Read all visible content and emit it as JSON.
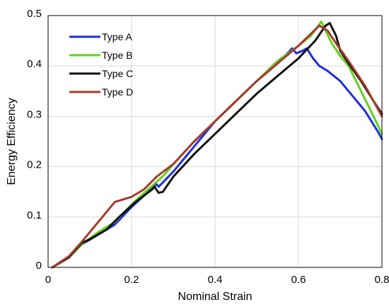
{
  "chart_data": {
    "type": "line",
    "xlabel": "Nominal Strain",
    "ylabel": "Energy Efficiency",
    "xlim": [
      0,
      0.8
    ],
    "ylim": [
      0,
      0.5
    ],
    "x_ticks": [
      "0",
      "0.2",
      "0.4",
      "0.6",
      "0.8"
    ],
    "y_ticks": [
      "0",
      "0.1",
      "0.2",
      "0.3",
      "0.4",
      "0.5"
    ],
    "x_tick_values": [
      0,
      0.2,
      0.4,
      0.6,
      0.8
    ],
    "y_tick_values": [
      0,
      0.1,
      0.2,
      0.3,
      0.4,
      0.5
    ],
    "grid": true,
    "legend_position": "top-left",
    "series": [
      {
        "name": "Type A",
        "color": "#1f2fd6",
        "points": [
          [
            0.01,
            0.0
          ],
          [
            0.05,
            0.02
          ],
          [
            0.08,
            0.045
          ],
          [
            0.1,
            0.055
          ],
          [
            0.13,
            0.07
          ],
          [
            0.16,
            0.085
          ],
          [
            0.2,
            0.12
          ],
          [
            0.24,
            0.15
          ],
          [
            0.26,
            0.165
          ],
          [
            0.265,
            0.16
          ],
          [
            0.3,
            0.19
          ],
          [
            0.35,
            0.24
          ],
          [
            0.4,
            0.29
          ],
          [
            0.45,
            0.33
          ],
          [
            0.5,
            0.37
          ],
          [
            0.55,
            0.405
          ],
          [
            0.585,
            0.435
          ],
          [
            0.595,
            0.425
          ],
          [
            0.61,
            0.43
          ],
          [
            0.62,
            0.435
          ],
          [
            0.635,
            0.415
          ],
          [
            0.65,
            0.4
          ],
          [
            0.67,
            0.39
          ],
          [
            0.7,
            0.37
          ],
          [
            0.73,
            0.34
          ],
          [
            0.76,
            0.31
          ],
          [
            0.79,
            0.27
          ],
          [
            0.8,
            0.255
          ]
        ]
      },
      {
        "name": "Type B",
        "color": "#5fd31e",
        "points": [
          [
            0.01,
            0.0
          ],
          [
            0.05,
            0.02
          ],
          [
            0.08,
            0.045
          ],
          [
            0.12,
            0.07
          ],
          [
            0.16,
            0.09
          ],
          [
            0.2,
            0.125
          ],
          [
            0.24,
            0.155
          ],
          [
            0.26,
            0.17
          ],
          [
            0.28,
            0.185
          ],
          [
            0.3,
            0.205
          ],
          [
            0.35,
            0.25
          ],
          [
            0.4,
            0.29
          ],
          [
            0.45,
            0.33
          ],
          [
            0.5,
            0.37
          ],
          [
            0.55,
            0.41
          ],
          [
            0.6,
            0.44
          ],
          [
            0.63,
            0.46
          ],
          [
            0.655,
            0.488
          ],
          [
            0.665,
            0.47
          ],
          [
            0.68,
            0.445
          ],
          [
            0.7,
            0.42
          ],
          [
            0.72,
            0.4
          ],
          [
            0.75,
            0.35
          ],
          [
            0.78,
            0.3
          ],
          [
            0.8,
            0.265
          ]
        ]
      },
      {
        "name": "Type C",
        "color": "#111111",
        "points": [
          [
            0.01,
            0.0
          ],
          [
            0.05,
            0.02
          ],
          [
            0.08,
            0.048
          ],
          [
            0.1,
            0.056
          ],
          [
            0.14,
            0.075
          ],
          [
            0.17,
            0.1
          ],
          [
            0.21,
            0.13
          ],
          [
            0.25,
            0.155
          ],
          [
            0.255,
            0.16
          ],
          [
            0.265,
            0.148
          ],
          [
            0.275,
            0.15
          ],
          [
            0.3,
            0.18
          ],
          [
            0.35,
            0.225
          ],
          [
            0.4,
            0.265
          ],
          [
            0.45,
            0.305
          ],
          [
            0.5,
            0.345
          ],
          [
            0.55,
            0.38
          ],
          [
            0.6,
            0.415
          ],
          [
            0.64,
            0.45
          ],
          [
            0.665,
            0.48
          ],
          [
            0.675,
            0.485
          ],
          [
            0.69,
            0.46
          ],
          [
            0.7,
            0.43
          ],
          [
            0.72,
            0.405
          ],
          [
            0.75,
            0.37
          ],
          [
            0.78,
            0.33
          ],
          [
            0.8,
            0.305
          ]
        ]
      },
      {
        "name": "Type D",
        "color": "#a63a2b",
        "points": [
          [
            0.01,
            0.0
          ],
          [
            0.05,
            0.022
          ],
          [
            0.08,
            0.05
          ],
          [
            0.12,
            0.09
          ],
          [
            0.16,
            0.13
          ],
          [
            0.2,
            0.14
          ],
          [
            0.23,
            0.155
          ],
          [
            0.26,
            0.18
          ],
          [
            0.3,
            0.205
          ],
          [
            0.35,
            0.25
          ],
          [
            0.4,
            0.29
          ],
          [
            0.45,
            0.33
          ],
          [
            0.5,
            0.37
          ],
          [
            0.55,
            0.405
          ],
          [
            0.6,
            0.44
          ],
          [
            0.65,
            0.48
          ],
          [
            0.67,
            0.47
          ],
          [
            0.69,
            0.445
          ],
          [
            0.72,
            0.41
          ],
          [
            0.76,
            0.36
          ],
          [
            0.8,
            0.3
          ]
        ]
      }
    ]
  }
}
